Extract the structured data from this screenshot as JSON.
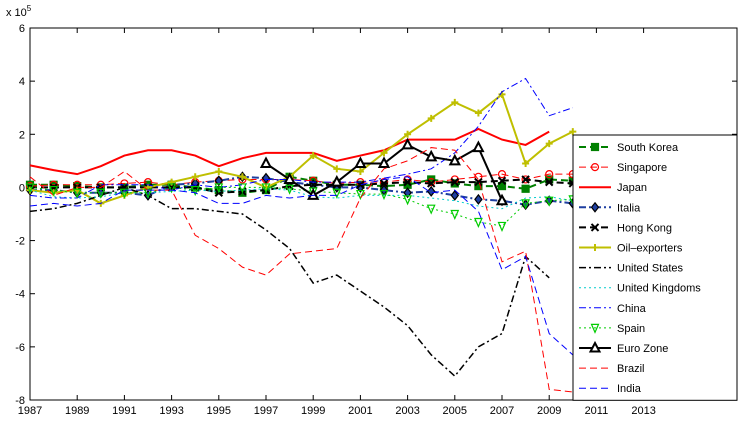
{
  "chart_data": {
    "type": "line",
    "y_scale_base": "x 10",
    "y_scale_exponent": "5",
    "x": [
      1987,
      1988,
      1989,
      1990,
      1991,
      1992,
      1993,
      1994,
      1995,
      1996,
      1997,
      1998,
      1999,
      2000,
      2001,
      2002,
      2003,
      2004,
      2005,
      2006,
      2007,
      2008,
      2009,
      2010
    ],
    "xlim": [
      1987,
      2017
    ],
    "xticks": [
      1987,
      1989,
      1991,
      1993,
      1995,
      1997,
      1999,
      2001,
      2003,
      2005,
      2007,
      2009,
      2011,
      2013
    ],
    "ylim": [
      -8,
      6
    ],
    "yticks": [
      -8,
      -6,
      -4,
      -2,
      0,
      2,
      4,
      6
    ],
    "legend": "right",
    "series": [
      {
        "name": "South Korea",
        "color": "#008000",
        "dash": "dash",
        "marker": "square",
        "width": 2,
        "values": [
          0.1,
          0.1,
          0.05,
          0,
          0,
          0.1,
          0.1,
          0,
          -0.1,
          -0.2,
          -0.1,
          0.4,
          0.25,
          0.1,
          0.1,
          0.05,
          0.1,
          0.3,
          0.15,
          0.05,
          0.05,
          -0.05,
          0.3,
          0.25
        ]
      },
      {
        "name": "Singapore",
        "color": "#ff0000",
        "dash": "dash",
        "marker": "circle",
        "width": 1,
        "values": [
          0.05,
          0.1,
          0.1,
          0.1,
          0.15,
          0.2,
          0.1,
          0.2,
          0.25,
          0.3,
          0.3,
          0.3,
          0.25,
          0.15,
          0.2,
          0.2,
          0.3,
          0.2,
          0.3,
          0.4,
          0.5,
          0.3,
          0.5,
          0.5
        ]
      },
      {
        "name": "Japan",
        "color": "#ff0000",
        "dash": "solid",
        "marker": "none",
        "width": 2,
        "values": [
          0.83,
          0.65,
          0.5,
          0.8,
          1.2,
          1.4,
          1.4,
          1.2,
          0.8,
          1.1,
          1.3,
          1.3,
          1.3,
          1.0,
          1.2,
          1.4,
          1.8,
          1.8,
          1.8,
          2.2,
          1.8,
          1.6,
          2.1,
          null
        ]
      },
      {
        "name": "Italia",
        "color": "#1f3fa0",
        "dash": "dashdot",
        "marker": "diamond",
        "width": 2,
        "values": [
          -0.1,
          -0.1,
          -0.2,
          -0.2,
          -0.2,
          -0.3,
          0.1,
          0.15,
          0.25,
          0.4,
          0.35,
          0.2,
          0.1,
          0,
          0,
          -0.1,
          -0.2,
          -0.15,
          -0.3,
          -0.45,
          -0.5,
          -0.65,
          -0.5,
          -0.6
        ]
      },
      {
        "name": "Hong Kong",
        "color": "#000000",
        "dash": "dash",
        "marker": "x",
        "width": 2,
        "values": [
          0,
          0,
          0,
          0,
          0,
          0,
          0,
          0,
          -0.2,
          -0.15,
          -0.1,
          0.05,
          0.1,
          0.1,
          0.1,
          0.15,
          0.2,
          0.15,
          0.2,
          0.2,
          0.25,
          0.3,
          0.2,
          0.15
        ]
      },
      {
        "name": "Oil–exporters",
        "color": "#bfbf00",
        "dash": "solid",
        "marker": "plus",
        "width": 2,
        "values": [
          -0.1,
          -0.2,
          -0.1,
          -0.6,
          -0.3,
          0,
          0.2,
          0.4,
          0.6,
          0.4,
          0,
          0.4,
          1.2,
          0.7,
          0.6,
          1.3,
          2.0,
          2.6,
          3.2,
          2.8,
          3.5,
          0.9,
          1.65,
          2.1
        ]
      },
      {
        "name": "United States",
        "color": "#000000",
        "dash": "dashdot",
        "marker": "none",
        "width": 1.5,
        "values": [
          -0.9,
          -0.8,
          -0.6,
          -0.3,
          0,
          -0.3,
          -0.8,
          -0.8,
          -0.9,
          -1.0,
          -1.6,
          -2.3,
          -3.6,
          -3.3,
          -3.9,
          -4.5,
          -5.2,
          -6.3,
          -7.1,
          -6.0,
          -5.5,
          -2.6,
          -3.4,
          null
        ]
      },
      {
        "name": "United Kingdoms",
        "color": "#00cccc",
        "dash": "dot",
        "marker": "none",
        "width": 1,
        "values": [
          -0.1,
          -0.35,
          -0.4,
          -0.35,
          -0.2,
          -0.2,
          -0.15,
          -0.1,
          -0.15,
          -0.1,
          -0.05,
          -0.1,
          -0.35,
          -0.4,
          -0.3,
          -0.3,
          -0.3,
          -0.4,
          -0.5,
          -0.7,
          -0.8,
          -0.4,
          -0.35,
          -0.5
        ]
      },
      {
        "name": "China",
        "color": "#0000ff",
        "dash": "dashdot",
        "marker": "none",
        "width": 1,
        "values": [
          -0.3,
          -0.4,
          -0.4,
          0.1,
          0.1,
          0.1,
          -0.1,
          0.1,
          0,
          0.1,
          0.3,
          0.3,
          0.2,
          0.2,
          0.2,
          0.35,
          0.5,
          0.7,
          1.3,
          2.3,
          3.6,
          4.1,
          2.7,
          3.0
        ]
      },
      {
        "name": "Spain",
        "color": "#00cc00",
        "dash": "dot",
        "marker": "triangle-down",
        "width": 1,
        "values": [
          0,
          -0.1,
          -0.2,
          -0.2,
          -0.2,
          -0.2,
          0,
          -0.1,
          0,
          0,
          0,
          -0.05,
          -0.15,
          -0.2,
          -0.25,
          -0.25,
          -0.45,
          -0.8,
          -1.0,
          -1.3,
          -1.45,
          -0.6,
          -0.5,
          -0.45
        ]
      },
      {
        "name": "Euro Zone",
        "color": "#000000",
        "dash": "solid",
        "marker": "triangle",
        "width": 2,
        "values": [
          null,
          null,
          null,
          null,
          null,
          null,
          null,
          null,
          null,
          null,
          0.9,
          0.3,
          -0.3,
          0.2,
          0.9,
          0.9,
          1.6,
          1.15,
          1.0,
          1.5,
          -0.5,
          null,
          null,
          null
        ]
      },
      {
        "name": "Brazil",
        "color": "#ff0000",
        "dash": "dash",
        "marker": "none",
        "width": 1,
        "values": [
          0.4,
          -0.3,
          0,
          0,
          0.6,
          -0.1,
          -0.1,
          -1.8,
          -2.3,
          -3.0,
          -3.3,
          -2.5,
          -2.4,
          -2.3,
          -0.4,
          0.7,
          1.0,
          1.5,
          1.4,
          0.3,
          -2.8,
          -2.4,
          -7.6,
          -7.7
        ]
      },
      {
        "name": "India",
        "color": "#0000ff",
        "dash": "dash",
        "marker": "none",
        "width": 1,
        "values": [
          -0.7,
          -0.6,
          -0.7,
          -0.6,
          -0.1,
          -0.1,
          -0.1,
          -0.2,
          -0.6,
          -0.6,
          -0.3,
          -0.4,
          -0.3,
          -0.3,
          0.1,
          0.3,
          0.4,
          -0.2,
          -0.1,
          -0.9,
          -3.1,
          -2.6,
          -5.5,
          -6.3
        ]
      }
    ]
  }
}
